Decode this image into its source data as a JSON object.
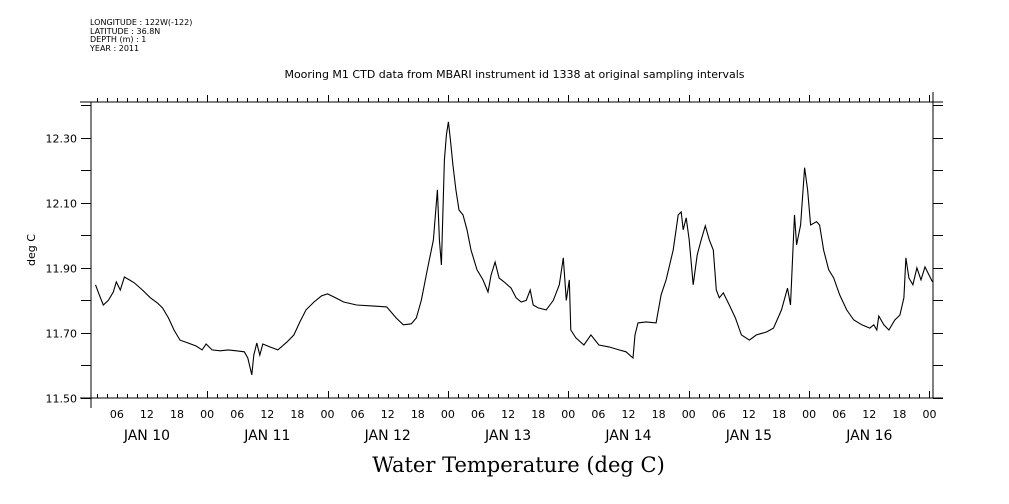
{
  "header": {
    "metadata_lines": [
      "LONGITUDE : 122W(-122)",
      "LATITUDE : 36.8N",
      "DEPTH (m) : 1",
      "YEAR : 2011"
    ],
    "title": "Mooring M1 CTD data from MBARI instrument id 1338 at original sampling intervals"
  },
  "chart_data": {
    "type": "line",
    "title": "Mooring M1 CTD data from MBARI instrument id 1338 at original sampling intervals",
    "xlabel": "Water Temperature (deg C)",
    "ylabel": "deg C",
    "x_units": "hours since JAN 10 00:00, 2011",
    "xlim": [
      0.85,
      168.7
    ],
    "ylim": [
      11.5,
      12.41
    ],
    "grid": false,
    "yticks": [
      11.5,
      11.7,
      11.9,
      12.1,
      12.3
    ],
    "ytick_labels": [
      "11.50",
      "11.70",
      "11.90",
      "12.10",
      "12.30"
    ],
    "yminor_ticks": [
      11.6,
      11.8,
      12.0,
      12.2,
      12.4
    ],
    "xticks_hours": [
      6,
      12,
      18,
      24,
      30,
      36,
      42,
      48,
      54,
      60,
      66,
      72,
      78,
      84,
      90,
      96,
      102,
      108,
      114,
      120,
      126,
      132,
      138,
      144,
      150,
      156,
      162,
      168
    ],
    "xtick_labels": [
      "06",
      "12",
      "18",
      "00",
      "06",
      "12",
      "18",
      "00",
      "06",
      "12",
      "18",
      "00",
      "06",
      "12",
      "18",
      "00",
      "06",
      "12",
      "18",
      "00",
      "06",
      "12",
      "18",
      "00",
      "06",
      "12",
      "18",
      "00"
    ],
    "day_labels": [
      {
        "hour": 12,
        "label": "JAN 10"
      },
      {
        "hour": 36,
        "label": "JAN 11"
      },
      {
        "hour": 60,
        "label": "JAN 12"
      },
      {
        "hour": 84,
        "label": "JAN 13"
      },
      {
        "hour": 108,
        "label": "JAN 14"
      },
      {
        "hour": 132,
        "label": "JAN 15"
      },
      {
        "hour": 156,
        "label": "JAN 16"
      }
    ],
    "series": [
      {
        "name": "Water Temperature",
        "color": "#000000",
        "x": [
          1.75,
          2.5,
          3.3,
          4.3,
          5.3,
          5.9,
          6.7,
          7.5,
          8.5,
          9.5,
          11.1,
          12.7,
          14.1,
          15.1,
          16.3,
          17.4,
          18.6,
          20.2,
          21.8,
          23.0,
          23.8,
          25.0,
          26.6,
          28.2,
          29.8,
          31.4,
          32.1,
          32.9,
          33.3,
          33.9,
          34.5,
          35.1,
          36.5,
          38.1,
          39.9,
          41.3,
          42.5,
          43.7,
          45.3,
          46.8,
          48.0,
          49.6,
          51.2,
          53.8,
          56.8,
          59.8,
          61.7,
          63.1,
          64.7,
          65.7,
          66.7,
          67.9,
          69.1,
          69.9,
          70.3,
          70.7,
          71.3,
          71.7,
          72.1,
          72.5,
          73.0,
          73.6,
          74.2,
          75.0,
          75.8,
          76.6,
          77.8,
          79.0,
          80.0,
          80.6,
          81.4,
          82.2,
          83.2,
          84.6,
          85.6,
          86.6,
          87.6,
          88.4,
          89.0,
          90.0,
          91.6,
          93.0,
          94.2,
          95.0,
          95.6,
          96.2,
          96.5,
          97.5,
          99.1,
          100.5,
          102.1,
          104.1,
          106.1,
          107.5,
          108.9,
          109.3,
          109.9,
          111.5,
          113.5,
          114.5,
          115.5,
          116.9,
          117.9,
          118.5,
          118.9,
          119.5,
          120.1,
          120.9,
          121.7,
          122.5,
          123.3,
          124.1,
          124.9,
          125.5,
          126.1,
          126.9,
          128.1,
          129.3,
          130.5,
          132.1,
          133.5,
          135.5,
          136.9,
          138.5,
          139.7,
          140.3,
          141.1,
          141.5,
          142.3,
          143.1,
          143.7,
          144.3,
          145.5,
          146.1,
          146.9,
          147.9,
          148.9,
          150.1,
          151.5,
          152.9,
          154.5,
          156.1,
          156.9,
          157.5,
          157.9,
          158.9,
          159.9,
          161.1,
          162.1,
          162.9,
          163.3,
          163.9,
          164.7,
          165.5,
          166.3,
          167.1,
          167.9,
          168.6
        ],
        "y": [
          11.848,
          11.817,
          11.786,
          11.8,
          11.826,
          11.857,
          11.832,
          11.872,
          11.863,
          11.854,
          11.832,
          11.808,
          11.792,
          11.777,
          11.746,
          11.709,
          11.678,
          11.669,
          11.66,
          11.648,
          11.666,
          11.648,
          11.645,
          11.648,
          11.645,
          11.642,
          11.623,
          11.571,
          11.632,
          11.669,
          11.632,
          11.666,
          11.657,
          11.648,
          11.672,
          11.694,
          11.734,
          11.771,
          11.795,
          11.814,
          11.82,
          11.808,
          11.795,
          11.786,
          11.783,
          11.78,
          11.746,
          11.725,
          11.728,
          11.746,
          11.8,
          11.894,
          11.986,
          12.14,
          11.986,
          11.909,
          12.232,
          12.309,
          12.349,
          12.294,
          12.217,
          12.14,
          12.078,
          12.063,
          12.017,
          11.955,
          11.894,
          11.863,
          11.826,
          11.878,
          11.918,
          11.869,
          11.857,
          11.838,
          11.808,
          11.795,
          11.8,
          11.832,
          11.786,
          11.777,
          11.771,
          11.8,
          11.848,
          11.931,
          11.8,
          11.863,
          11.709,
          11.685,
          11.663,
          11.694,
          11.663,
          11.657,
          11.648,
          11.642,
          11.623,
          11.694,
          11.731,
          11.734,
          11.731,
          11.817,
          11.863,
          11.955,
          12.063,
          12.072,
          12.017,
          12.054,
          11.986,
          11.848,
          11.94,
          11.986,
          12.029,
          11.986,
          11.955,
          11.832,
          11.808,
          11.823,
          11.786,
          11.746,
          11.694,
          11.678,
          11.694,
          11.703,
          11.715,
          11.771,
          11.838,
          11.786,
          12.063,
          11.971,
          12.032,
          12.208,
          12.14,
          12.032,
          12.042,
          12.032,
          11.955,
          11.894,
          11.869,
          11.817,
          11.771,
          11.74,
          11.725,
          11.715,
          11.725,
          11.709,
          11.752,
          11.725,
          11.709,
          11.74,
          11.755,
          11.808,
          11.931,
          11.869,
          11.848,
          11.9,
          11.863,
          11.903,
          11.878,
          11.857
        ]
      }
    ]
  }
}
